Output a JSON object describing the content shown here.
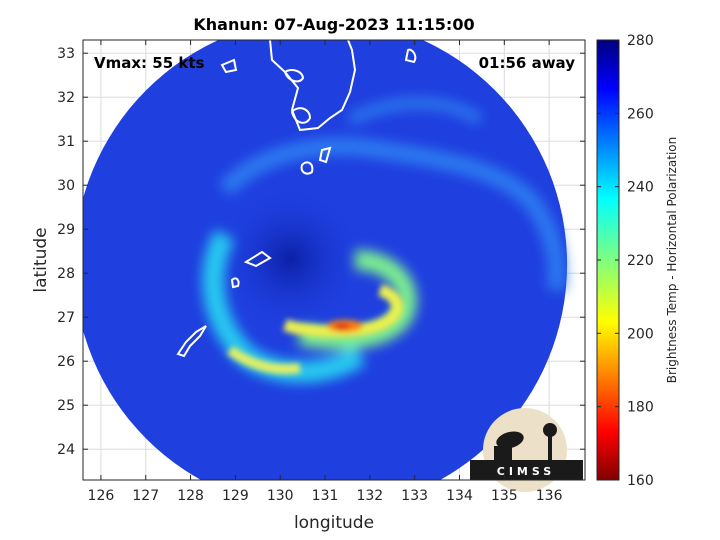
{
  "chart_data": {
    "type": "heatmap",
    "title": "Khanun: 07-Aug-2023 11:15:00",
    "xlabel": "longitude",
    "ylabel": "latitude",
    "xlim": [
      125.6,
      136.8
    ],
    "ylim": [
      23.3,
      33.3
    ],
    "xticks": [
      126,
      127,
      128,
      129,
      130,
      131,
      132,
      133,
      134,
      135,
      136
    ],
    "yticks": [
      24,
      25,
      26,
      27,
      28,
      29,
      30,
      31,
      32,
      33
    ],
    "grid": true,
    "annotations": {
      "vmax": "Vmax: 55 kts",
      "time_away": "01:56 away"
    },
    "colorbar": {
      "label": "Brightness Temp - Horizontal Polarization",
      "min": 160,
      "max": 280,
      "ticks": [
        160,
        180,
        200,
        220,
        240,
        260,
        280
      ],
      "colormap": "jet"
    },
    "center": {
      "lon": 130.9,
      "lat": 28.2
    },
    "scan_radius_deg": 5.5,
    "logo": "CIMSS"
  }
}
